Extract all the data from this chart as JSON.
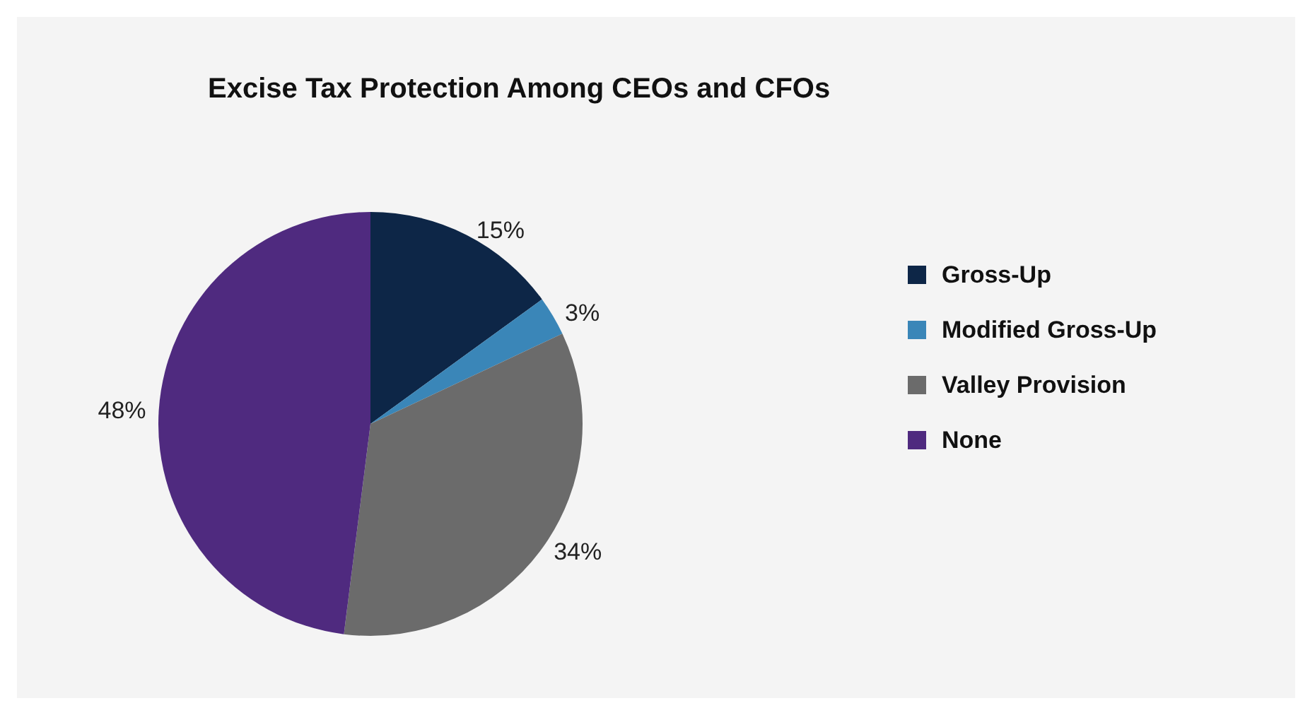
{
  "chart_data": {
    "type": "pie",
    "title": "Excise Tax Protection Among CEOs and CFOs",
    "categories": [
      "Gross-Up",
      "Modified Gross-Up",
      "Valley Provision",
      "None"
    ],
    "values": [
      15,
      3,
      34,
      48
    ],
    "colors": [
      "#0d2647",
      "#3a86b8",
      "#6b6b6b",
      "#4f2a7f"
    ],
    "value_labels": [
      "15%",
      "3%",
      "34%",
      "48%"
    ],
    "legend": "right"
  }
}
